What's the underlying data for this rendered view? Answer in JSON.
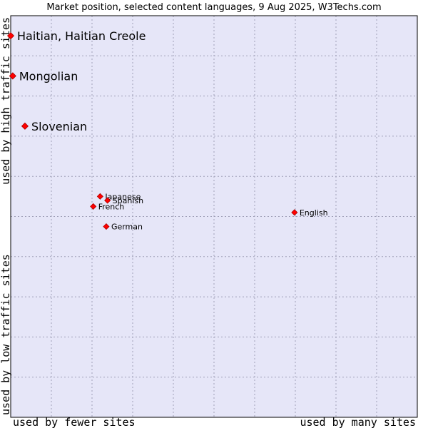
{
  "chart_data": {
    "type": "scatter",
    "title": "Market position, selected content languages, 9 Aug 2025, W3Techs.com",
    "xlabel_left": "used by fewer sites",
    "xlabel_right": "used by many sites",
    "ylabel_bottom": "used by low traffic sites",
    "ylabel_top": "used by high traffic sites",
    "xlim": [
      0,
      10
    ],
    "ylim": [
      0,
      10
    ],
    "grid": true,
    "colors": {
      "plot_bg": "#e6e6f8",
      "grid": "#a0a0b8",
      "border": "#000000",
      "point_fill": "#ff0000",
      "point_stroke": "#aa0000"
    },
    "points": [
      {
        "name": "Haitian, Haitian Creole",
        "x": 0.0,
        "y": 9.5,
        "size": "large"
      },
      {
        "name": "Mongolian",
        "x": 0.05,
        "y": 8.5,
        "size": "large"
      },
      {
        "name": "Slovenian",
        "x": 0.35,
        "y": 7.25,
        "size": "large"
      },
      {
        "name": "Japanese",
        "x": 2.2,
        "y": 5.5,
        "size": "small"
      },
      {
        "name": "Spanish",
        "x": 2.38,
        "y": 5.4,
        "size": "small"
      },
      {
        "name": "French",
        "x": 2.03,
        "y": 5.25,
        "size": "small"
      },
      {
        "name": "German",
        "x": 2.35,
        "y": 4.75,
        "size": "small"
      },
      {
        "name": "English",
        "x": 6.98,
        "y": 5.1,
        "size": "small"
      }
    ]
  }
}
